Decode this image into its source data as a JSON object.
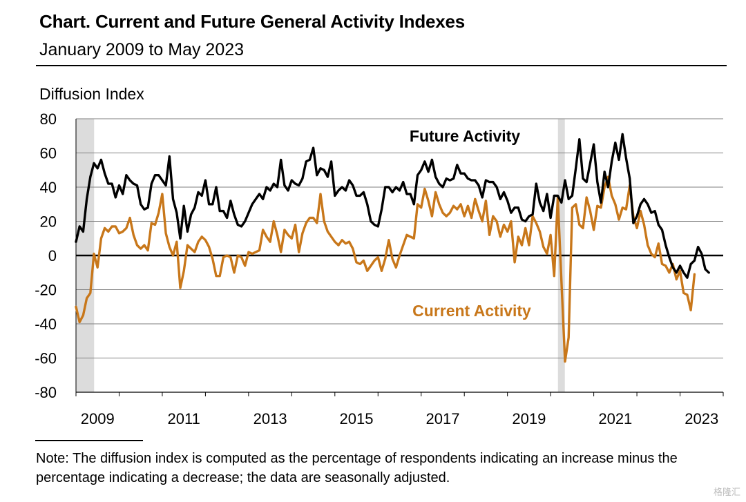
{
  "header": {
    "title": "Chart. Current and Future General Activity Indexes",
    "subtitle": "January 2009 to May 2023"
  },
  "note": "Note: The diffusion index is computed as the percentage of respondents indicating an increase minus the percentage indicating a decrease; the data are seasonally adjusted.",
  "watermark": "格隆汇",
  "colors": {
    "future": "#000000",
    "current": "#c8771a",
    "recession": "#dcdcdc",
    "grid": "#7f7f7f"
  },
  "chart_data": {
    "type": "line",
    "title": "Chart. Current and Future General Activity Indexes",
    "subtitle": "January 2009 to May 2023",
    "ylabel": "Diffusion Index",
    "ylim": [
      -80,
      80
    ],
    "yticks": [
      80,
      60,
      40,
      20,
      0,
      -20,
      -40,
      -60,
      -80
    ],
    "xlim": [
      2009.0,
      2024.0
    ],
    "xticks": [
      "2009",
      "2011",
      "2013",
      "2015",
      "2017",
      "2019",
      "2021",
      "2023"
    ],
    "grid": "horizontal",
    "zero_line": true,
    "recession_shading": [
      [
        2009.0,
        2009.42
      ],
      [
        2020.17,
        2020.33
      ]
    ],
    "series_labels": [
      {
        "text": "Future Activity",
        "series": "Future Activity"
      },
      {
        "text": "Current Activity",
        "series": "Current Activity"
      }
    ],
    "series": [
      {
        "name": "Future Activity",
        "color": "#000000",
        "start": "2009-01",
        "frequency": "monthly",
        "values": [
          8,
          17,
          14,
          33,
          46,
          54,
          51,
          56,
          48,
          42,
          42,
          34,
          41,
          36,
          47,
          44,
          42,
          41,
          30,
          27,
          28,
          42,
          47,
          47,
          44,
          41,
          58,
          33,
          25,
          10,
          29,
          14,
          24,
          28,
          37,
          35,
          44,
          30,
          30,
          40,
          26,
          26,
          22,
          32,
          24,
          18,
          17,
          20,
          25,
          30,
          33,
          36,
          33,
          40,
          38,
          42,
          40,
          56,
          41,
          38,
          44,
          42,
          41,
          45,
          55,
          56,
          63,
          47,
          51,
          50,
          46,
          55,
          35,
          38,
          40,
          38,
          44,
          41,
          35,
          35,
          37,
          30,
          20,
          18,
          17,
          27,
          40,
          40,
          37,
          40,
          38,
          43,
          36,
          36,
          30,
          47,
          50,
          55,
          49,
          56,
          46,
          42,
          40,
          45,
          44,
          45,
          53,
          48,
          48,
          45,
          44,
          44,
          41,
          34,
          44,
          43,
          43,
          40,
          33,
          37,
          32,
          25,
          28,
          28,
          21,
          20,
          23,
          24,
          42,
          31,
          26,
          36,
          22,
          35,
          35,
          31,
          44,
          33,
          35,
          51,
          68,
          45,
          43,
          54,
          65,
          43,
          31,
          49,
          40,
          55,
          66,
          56,
          71,
          57,
          45,
          19,
          23,
          30,
          33,
          30,
          25,
          26,
          18,
          15,
          6,
          -1,
          -7,
          -10,
          -6,
          -10,
          -13,
          -5,
          -3,
          5,
          1,
          -8,
          -10
        ]
      },
      {
        "name": "Current Activity",
        "color": "#c8771a",
        "start": "2009-01",
        "frequency": "monthly",
        "values": [
          -30,
          -39,
          -35,
          -25,
          -22,
          1,
          -7,
          10,
          16,
          14,
          17,
          17,
          13,
          14,
          16,
          22,
          12,
          6,
          4,
          6,
          3,
          19,
          18,
          25,
          36,
          13,
          5,
          0,
          8,
          -19,
          -9,
          6,
          4,
          2,
          8,
          11,
          9,
          5,
          -2,
          -12,
          -12,
          -1,
          0,
          -1,
          -10,
          0,
          -1,
          -6,
          2,
          1,
          2,
          3,
          15,
          11,
          8,
          20,
          12,
          2,
          15,
          12,
          10,
          18,
          2,
          13,
          19,
          22,
          22,
          19,
          36,
          20,
          14,
          11,
          8,
          6,
          9,
          7,
          8,
          4,
          -4,
          -5,
          -3,
          -9,
          -6,
          -3,
          -1,
          -9,
          -2,
          9,
          -2,
          -7,
          0,
          6,
          12,
          11,
          10,
          30,
          28,
          39,
          32,
          23,
          37,
          30,
          25,
          23,
          25,
          29,
          27,
          30,
          23,
          29,
          22,
          33,
          26,
          20,
          32,
          12,
          23,
          20,
          11,
          18,
          14,
          20,
          -4,
          11,
          6,
          16,
          6,
          23,
          19,
          14,
          5,
          1,
          12,
          -12,
          34,
          -15,
          -62,
          -48,
          28,
          30,
          18,
          16,
          34,
          26,
          15,
          29,
          28,
          40,
          46,
          35,
          30,
          21,
          28,
          27,
          41,
          23,
          16,
          26,
          18,
          6,
          1,
          -1,
          7,
          -5,
          -6,
          -10,
          -5,
          -14,
          -9,
          -22,
          -23,
          -32,
          -11
        ]
      }
    ]
  }
}
